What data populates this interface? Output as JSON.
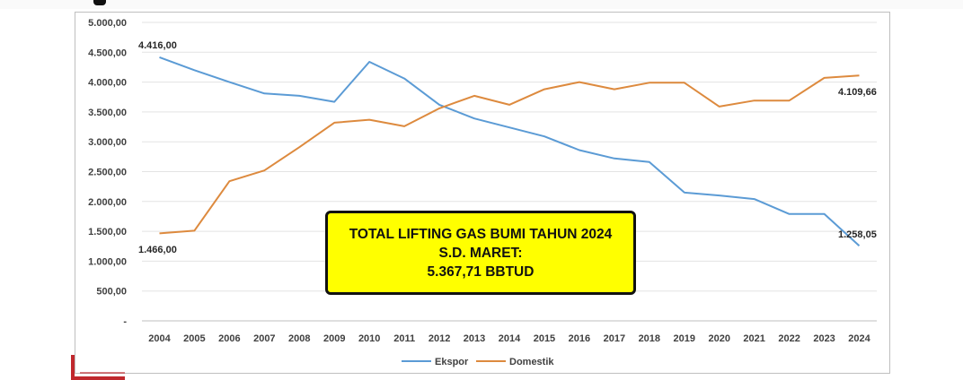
{
  "chart_data": {
    "type": "line",
    "x": [
      "2004",
      "2005",
      "2006",
      "2007",
      "2008",
      "2009",
      "2010",
      "2011",
      "2012",
      "2013",
      "2014",
      "2015",
      "2016",
      "2017",
      "2018",
      "2019",
      "2020",
      "2021",
      "2022",
      "2023",
      "2024"
    ],
    "series": [
      {
        "name": "Ekspor",
        "color": "#5b9bd5",
        "values": [
          4416,
          4200,
          4000,
          3810,
          3770,
          3670,
          4340,
          4060,
          3620,
          3390,
          3240,
          3090,
          2860,
          2720,
          2660,
          2150,
          2100,
          2040,
          1790,
          1790,
          1258.05
        ]
      },
      {
        "name": "Domestik",
        "color": "#dd8a3e",
        "values": [
          1466,
          1510,
          2340,
          2520,
          2910,
          3320,
          3370,
          3260,
          3560,
          3770,
          3620,
          3880,
          4000,
          3880,
          3990,
          3990,
          3590,
          3690,
          3690,
          4070,
          4109.66
        ]
      }
    ],
    "ylim": [
      0,
      5000
    ],
    "yticks": [
      "-",
      "500,00",
      "1.000,00",
      "1.500,00",
      "2.000,00",
      "2.500,00",
      "3.000,00",
      "3.500,00",
      "4.000,00",
      "4.500,00",
      "5.000,00"
    ],
    "annotations": {
      "ekspor_start": "4.416,00",
      "domestik_start": "1.466,00",
      "ekspor_end": "1.258,05",
      "domestik_end": "4.109,66"
    },
    "legend_position": "bottom",
    "grid": true
  },
  "callout": {
    "line1": "TOTAL LIFTING GAS BUMI TAHUN 2024",
    "line2": "S.D. MARET:",
    "line3": "5.367,71 BBTUD"
  }
}
